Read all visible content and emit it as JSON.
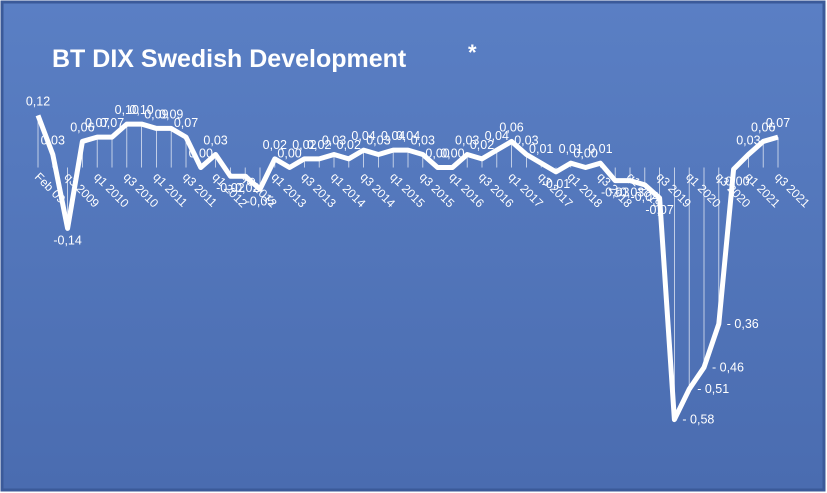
{
  "chart_data": {
    "type": "line",
    "title": "BT DIX Swedish Development",
    "annotations": [
      "*"
    ],
    "categories": [
      "Feb 09",
      null,
      "q3 2009",
      null,
      "q1 2010",
      null,
      "q3 2010",
      null,
      "q1 2011",
      null,
      "q3 2011",
      null,
      "q1 2012",
      null,
      "q3 2012",
      null,
      "q1 2013",
      null,
      "q3 2013",
      null,
      "q1 2014",
      null,
      "q3 2014",
      null,
      "q1 2015",
      null,
      "q3 2015",
      null,
      "q1 2016",
      null,
      "q3 2016",
      null,
      "q1 2017",
      null,
      "q3 2017",
      null,
      "q1 2018",
      null,
      "q3 2018",
      null,
      "q1 2019",
      null,
      "q3 2019",
      null,
      "q1 2020",
      null,
      "q3 2020",
      null,
      "q1 2021",
      null,
      "q3 2021"
    ],
    "series": [
      {
        "name": "BT DIX",
        "color": "#ffffff",
        "values": [
          0.12,
          0.03,
          -0.14,
          0.06,
          0.07,
          0.07,
          0.1,
          0.1,
          0.09,
          0.09,
          0.07,
          0.0,
          0.03,
          -0.02,
          -0.02,
          -0.05,
          0.02,
          0.0,
          0.02,
          0.02,
          0.03,
          0.02,
          0.04,
          0.03,
          0.04,
          0.04,
          0.03,
          0.0,
          0.0,
          0.03,
          0.02,
          0.04,
          0.06,
          0.03,
          0.01,
          -0.01,
          0.01,
          0.0,
          0.01,
          -0.03,
          -0.03,
          -0.04,
          -0.07,
          -0.58,
          -0.51,
          -0.46,
          -0.36,
          -0.004,
          0.03,
          0.06,
          0.07
        ],
        "value_labels": [
          "0,12",
          "0,03",
          "-0,14",
          "0,06",
          "0,07",
          "0,07",
          "0,10",
          "0,10",
          "0,09",
          "0,09",
          "0,07",
          "0,00",
          "0,03",
          "-0,02",
          "-0,02",
          "-0,05",
          "0,02",
          "0,00",
          "0,02",
          "0,02",
          "0,03",
          "0,02",
          "0,04",
          "0,03",
          "0,04",
          "0,04",
          "0,03",
          "0,00",
          "0,00",
          "0,03",
          "0,02",
          "0,04",
          "0,06",
          "0,03",
          "0,01",
          "-0,01",
          "0,01",
          "0,00",
          "0,01",
          "-0,03",
          "-0,03",
          "-0,04",
          "-0,07",
          "- 0,58",
          "- 0,51",
          "- 0,46",
          "- 0,36",
          "- 0,00",
          "0,03",
          "0,06",
          "0,07"
        ]
      }
    ],
    "ylim": [
      -0.65,
      0.16
    ],
    "drop_lines": true
  }
}
